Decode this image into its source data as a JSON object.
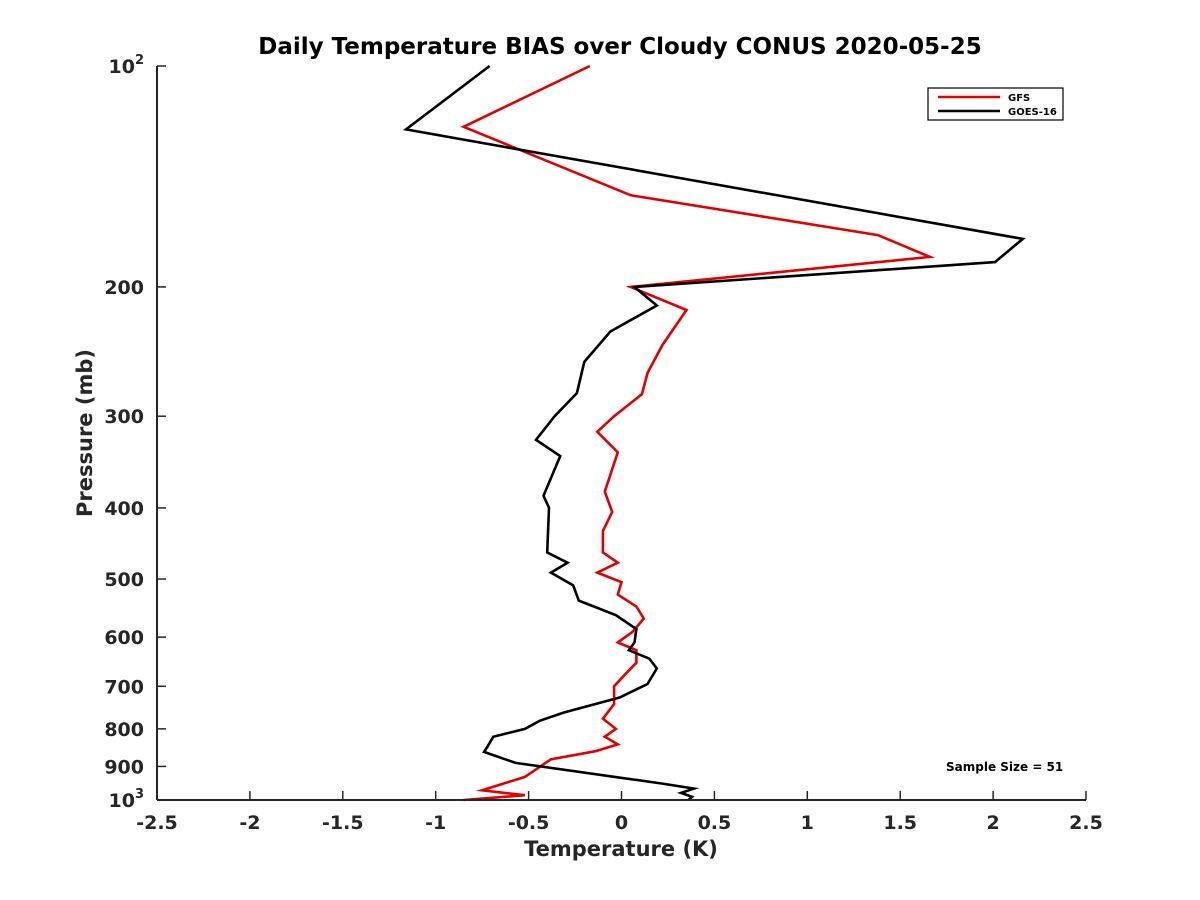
{
  "chart_data": {
    "type": "line",
    "title": "Daily Temperature BIAS over Cloudy CONUS 2020-05-25",
    "xlabel": "Temperature (K)",
    "ylabel": "Pressure (mb)",
    "xlim": [
      -2.5,
      2.5
    ],
    "ylim": [
      100,
      1000
    ],
    "yscale": "log",
    "y_reversed": true,
    "grid": false,
    "legend_position": "top-right",
    "x_ticks": [
      "-2.5",
      "-2",
      "-1.5",
      "-1",
      "-0.5",
      "0",
      "0.5",
      "1",
      "1.5",
      "2",
      "2.5"
    ],
    "x_tick_values": [
      -2.5,
      -2,
      -1.5,
      -1,
      -0.5,
      0,
      0.5,
      1,
      1.5,
      2,
      2.5
    ],
    "y_ticks": [
      {
        "value": 100,
        "base": "10",
        "exp": "2"
      },
      {
        "value": 200,
        "label": "200"
      },
      {
        "value": 300,
        "label": "300"
      },
      {
        "value": 400,
        "label": "400"
      },
      {
        "value": 500,
        "label": "500"
      },
      {
        "value": 600,
        "label": "600"
      },
      {
        "value": 700,
        "label": "700"
      },
      {
        "value": 800,
        "label": "800"
      },
      {
        "value": 900,
        "label": "900"
      },
      {
        "value": 1000,
        "base": "10",
        "exp": "3"
      }
    ],
    "series": [
      {
        "name": "GFS",
        "color": "#e00000",
        "points": [
          [
            -0.17,
            100
          ],
          [
            -0.85,
            121
          ],
          [
            0.05,
            150
          ],
          [
            1.38,
            170
          ],
          [
            1.66,
            182
          ],
          [
            0.05,
            200
          ],
          [
            0.35,
            215
          ],
          [
            0.22,
            240
          ],
          [
            0.14,
            262
          ],
          [
            0.11,
            280
          ],
          [
            -0.04,
            300
          ],
          [
            -0.13,
            315
          ],
          [
            -0.02,
            336
          ],
          [
            -0.09,
            380
          ],
          [
            -0.05,
            405
          ],
          [
            -0.1,
            430
          ],
          [
            -0.1,
            460
          ],
          [
            -0.02,
            475
          ],
          [
            -0.13,
            490
          ],
          [
            0.0,
            505
          ],
          [
            -0.02,
            525
          ],
          [
            0.08,
            545
          ],
          [
            0.12,
            566
          ],
          [
            0.06,
            590
          ],
          [
            -0.02,
            610
          ],
          [
            0.08,
            625
          ],
          [
            0.08,
            650
          ],
          [
            0.03,
            670
          ],
          [
            -0.04,
            700
          ],
          [
            -0.04,
            740
          ],
          [
            -0.1,
            775
          ],
          [
            -0.03,
            800
          ],
          [
            -0.09,
            820
          ],
          [
            -0.02,
            840
          ],
          [
            -0.14,
            858
          ],
          [
            -0.38,
            880
          ],
          [
            -0.52,
            930
          ],
          [
            -0.75,
            970
          ],
          [
            -0.52,
            985
          ],
          [
            -0.85,
            1000
          ]
        ]
      },
      {
        "name": "GOES-16",
        "color": "#000000",
        "points": [
          [
            -0.71,
            100
          ],
          [
            -1.16,
            122
          ],
          [
            2.16,
            172
          ],
          [
            2.01,
            185
          ],
          [
            0.07,
            200
          ],
          [
            0.19,
            212
          ],
          [
            -0.06,
            230
          ],
          [
            -0.2,
            253
          ],
          [
            -0.24,
            279
          ],
          [
            -0.36,
            300
          ],
          [
            -0.46,
            323
          ],
          [
            -0.33,
            340
          ],
          [
            -0.42,
            385
          ],
          [
            -0.39,
            400
          ],
          [
            -0.4,
            460
          ],
          [
            -0.29,
            475
          ],
          [
            -0.38,
            490
          ],
          [
            -0.26,
            510
          ],
          [
            -0.23,
            535
          ],
          [
            -0.03,
            560
          ],
          [
            0.08,
            585
          ],
          [
            0.07,
            610
          ],
          [
            0.04,
            625
          ],
          [
            0.15,
            642
          ],
          [
            0.19,
            662
          ],
          [
            0.14,
            695
          ],
          [
            -0.01,
            725
          ],
          [
            -0.31,
            760
          ],
          [
            -0.44,
            780
          ],
          [
            -0.52,
            800
          ],
          [
            -0.69,
            820
          ],
          [
            -0.72,
            845
          ],
          [
            -0.74,
            860
          ],
          [
            -0.57,
            890
          ],
          [
            0.22,
            950
          ],
          [
            0.39,
            965
          ],
          [
            0.32,
            978
          ],
          [
            0.38,
            990
          ],
          [
            0.36,
            1000
          ]
        ]
      }
    ],
    "annotation": "Sample Size = 51"
  }
}
